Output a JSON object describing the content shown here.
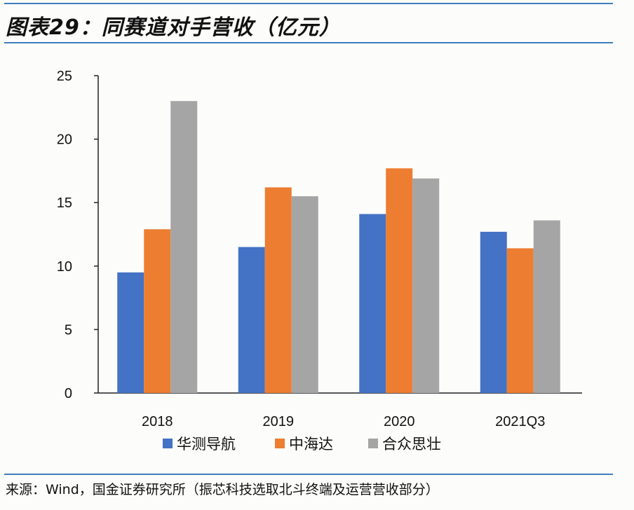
{
  "title": "图表29：同赛道对手营收（亿元）",
  "source": "来源：Wind，国金证券研究所（振芯科技选取北斗终端及运营营收部分）",
  "chart_data": {
    "type": "bar",
    "title": "图表29：同赛道对手营收（亿元）",
    "categories": [
      "2018",
      "2019",
      "2020",
      "2021Q3"
    ],
    "series": [
      {
        "name": "华测导航",
        "color": "#4472C4",
        "values": [
          9.5,
          11.5,
          14.1,
          12.7
        ]
      },
      {
        "name": "中海达",
        "color": "#ED7D31",
        "values": [
          12.9,
          16.2,
          17.7,
          11.4
        ]
      },
      {
        "name": "合众思壮",
        "color": "#A5A5A5",
        "values": [
          23.0,
          15.5,
          16.9,
          13.6
        ]
      }
    ],
    "ylim": [
      0,
      25
    ],
    "yticks": [
      "0",
      "5",
      "10",
      "15",
      "20",
      "25"
    ],
    "grid": false,
    "legend": "bottom",
    "xlabel": "",
    "ylabel": ""
  }
}
